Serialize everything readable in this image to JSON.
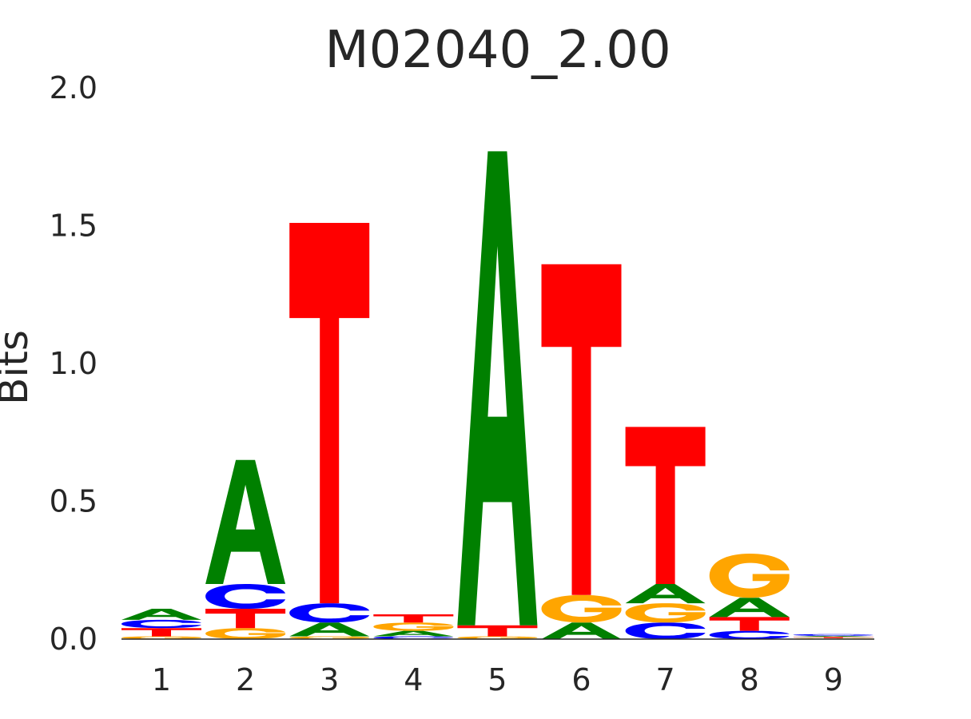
{
  "chart_data": {
    "type": "sequence-logo",
    "title": "M02040_2.00",
    "ylabel": "Bits",
    "xlabel": "",
    "ylim": [
      0,
      2.0
    ],
    "yticks": [
      "0.0",
      "0.5",
      "1.0",
      "1.5",
      "2.0"
    ],
    "grid": false,
    "colors": {
      "A": "#008000",
      "C": "#0000ff",
      "G": "#ffa500",
      "T": "#ff0000"
    },
    "positions": [
      {
        "label": "1",
        "letters": [
          {
            "base": "G",
            "bits": 0.01
          },
          {
            "base": "T",
            "bits": 0.03
          },
          {
            "base": "C",
            "bits": 0.03
          },
          {
            "base": "A",
            "bits": 0.04
          }
        ]
      },
      {
        "label": "2",
        "letters": [
          {
            "base": "G",
            "bits": 0.04
          },
          {
            "base": "T",
            "bits": 0.07
          },
          {
            "base": "C",
            "bits": 0.09
          },
          {
            "base": "A",
            "bits": 0.45
          }
        ]
      },
      {
        "label": "3",
        "letters": [
          {
            "base": "G",
            "bits": 0.01
          },
          {
            "base": "A",
            "bits": 0.05
          },
          {
            "base": "C",
            "bits": 0.07
          },
          {
            "base": "T",
            "bits": 1.38
          }
        ]
      },
      {
        "label": "4",
        "letters": [
          {
            "base": "C",
            "bits": 0.01
          },
          {
            "base": "A",
            "bits": 0.02
          },
          {
            "base": "G",
            "bits": 0.03
          },
          {
            "base": "T",
            "bits": 0.03
          }
        ]
      },
      {
        "label": "5",
        "letters": [
          {
            "base": "G",
            "bits": 0.01
          },
          {
            "base": "T",
            "bits": 0.04
          },
          {
            "base": "A",
            "bits": 1.72
          }
        ]
      },
      {
        "label": "6",
        "letters": [
          {
            "base": "A",
            "bits": 0.06
          },
          {
            "base": "G",
            "bits": 0.1
          },
          {
            "base": "T",
            "bits": 1.2
          }
        ]
      },
      {
        "label": "7",
        "letters": [
          {
            "base": "C",
            "bits": 0.06
          },
          {
            "base": "G",
            "bits": 0.07
          },
          {
            "base": "A",
            "bits": 0.07
          },
          {
            "base": "T",
            "bits": 0.57
          }
        ]
      },
      {
        "label": "8",
        "letters": [
          {
            "base": "C",
            "bits": 0.03
          },
          {
            "base": "T",
            "bits": 0.05
          },
          {
            "base": "A",
            "bits": 0.07
          },
          {
            "base": "G",
            "bits": 0.16
          }
        ]
      },
      {
        "label": "9",
        "letters": [
          {
            "base": "G",
            "bits": 0.004
          },
          {
            "base": "T",
            "bits": 0.004
          },
          {
            "base": "A",
            "bits": 0.004
          },
          {
            "base": "C",
            "bits": 0.006
          }
        ]
      }
    ]
  }
}
